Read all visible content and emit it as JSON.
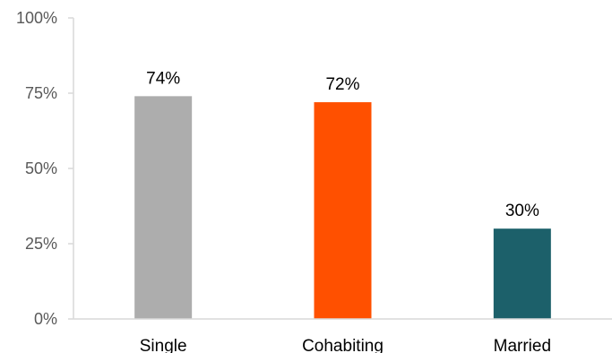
{
  "chart_data": {
    "type": "bar",
    "title": "",
    "xlabel": "",
    "ylabel": "",
    "categories": [
      "Single",
      "Cohabiting",
      "Married"
    ],
    "values": [
      74,
      72,
      30
    ],
    "data_labels": [
      "74%",
      "72%",
      "30%"
    ],
    "colors": [
      "#adadad",
      "#ff5000",
      "#1c606a"
    ],
    "ylim": [
      0,
      100
    ],
    "yticks": [
      0,
      25,
      50,
      75,
      100
    ],
    "ytick_labels": [
      "0%",
      "25%",
      "50%",
      "75%",
      "100%"
    ],
    "grid": false,
    "legend": "none"
  }
}
